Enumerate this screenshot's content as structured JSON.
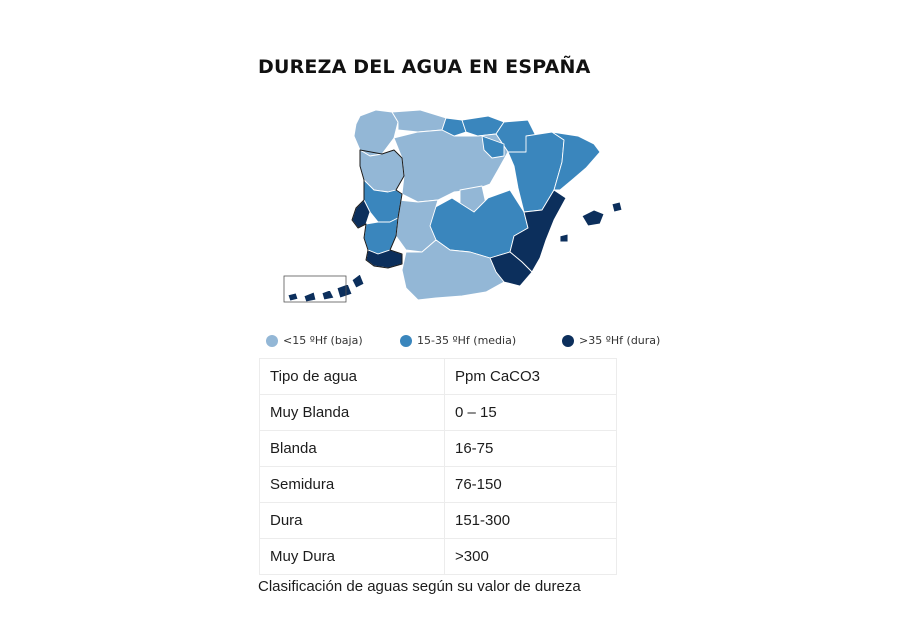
{
  "map": {
    "title": "DUREZA DEL AGUA EN ESPAÑA",
    "colors": {
      "baja": "#93b7d6",
      "media": "#3a86bd",
      "dura": "#0c2f5c",
      "border": "#ffffff",
      "portugal_border": "#1a1a1a"
    },
    "regions": [
      {
        "name": "Galicia",
        "class": "baja"
      },
      {
        "name": "Asturias",
        "class": "baja"
      },
      {
        "name": "Cantabria",
        "class": "media"
      },
      {
        "name": "País Vasco",
        "class": "media"
      },
      {
        "name": "Navarra",
        "class": "media"
      },
      {
        "name": "Aragón",
        "class": "media"
      },
      {
        "name": "Cataluña",
        "class": "media"
      },
      {
        "name": "Castilla y León",
        "class": "baja"
      },
      {
        "name": "La Rioja",
        "class": "media"
      },
      {
        "name": "Madrid",
        "class": "baja"
      },
      {
        "name": "Castilla-La Mancha",
        "class": "media"
      },
      {
        "name": "Comunidad Valenciana",
        "class": "dura"
      },
      {
        "name": "Murcia",
        "class": "dura"
      },
      {
        "name": "Extremadura",
        "class": "baja"
      },
      {
        "name": "Andalucía",
        "class": "baja"
      },
      {
        "name": "Islas Baleares",
        "class": "dura"
      },
      {
        "name": "Islas Canarias",
        "class": "dura"
      },
      {
        "name": "Portugal Norte",
        "class": "baja"
      },
      {
        "name": "Portugal Centro",
        "class": "media"
      },
      {
        "name": "Lisboa",
        "class": "dura"
      },
      {
        "name": "Alentejo",
        "class": "media"
      },
      {
        "name": "Algarve",
        "class": "dura"
      }
    ]
  },
  "legend": [
    {
      "label": "<15 ºHf (baja)",
      "color": "#93b7d6"
    },
    {
      "label": "15-35 ºHf (media)",
      "color": "#3a86bd"
    },
    {
      "label": ">35 ºHf (dura)",
      "color": "#0c2f5c"
    }
  ],
  "table": {
    "rows": [
      [
        "Tipo de agua",
        "Ppm CaCO3"
      ],
      [
        "Muy Blanda",
        "0 – 15"
      ],
      [
        "Blanda",
        "16-75"
      ],
      [
        "Semidura",
        "76-150"
      ],
      [
        "Dura",
        "151-300"
      ],
      [
        "Muy Dura",
        ">300"
      ]
    ]
  },
  "caption": "Clasificación de aguas según su valor de dureza"
}
